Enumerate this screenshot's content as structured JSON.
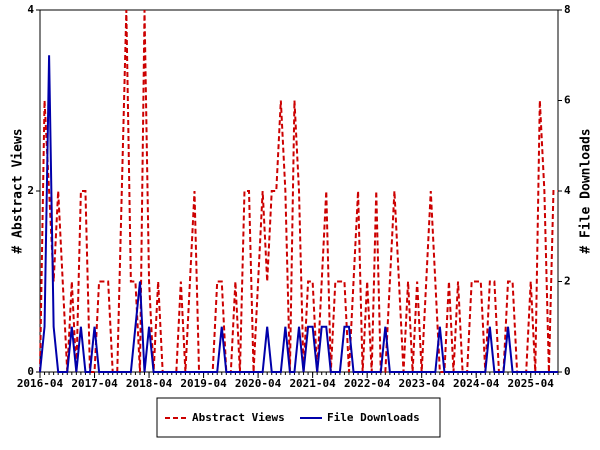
{
  "chart_data": {
    "type": "line",
    "x": [
      "2016-04",
      "2016-05",
      "2016-06",
      "2016-07",
      "2016-08",
      "2016-09",
      "2016-10",
      "2016-11",
      "2016-12",
      "2017-01",
      "2017-02",
      "2017-03",
      "2017-04",
      "2017-05",
      "2017-06",
      "2017-07",
      "2017-08",
      "2017-09",
      "2017-10",
      "2017-11",
      "2017-12",
      "2018-01",
      "2018-02",
      "2018-03",
      "2018-04",
      "2018-05",
      "2018-06",
      "2018-07",
      "2018-08",
      "2018-09",
      "2018-10",
      "2018-11",
      "2018-12",
      "2019-01",
      "2019-02",
      "2019-03",
      "2019-04",
      "2019-05",
      "2019-06",
      "2019-07",
      "2019-08",
      "2019-09",
      "2019-10",
      "2019-11",
      "2019-12",
      "2020-01",
      "2020-02",
      "2020-03",
      "2020-04",
      "2020-05",
      "2020-06",
      "2020-07",
      "2020-08",
      "2020-09",
      "2020-10",
      "2020-11",
      "2020-12",
      "2021-01",
      "2021-02",
      "2021-03",
      "2021-04",
      "2021-05",
      "2021-06",
      "2021-07",
      "2021-08",
      "2021-09",
      "2021-10",
      "2021-11",
      "2021-12",
      "2022-01",
      "2022-02",
      "2022-03",
      "2022-04",
      "2022-05",
      "2022-06",
      "2022-07",
      "2022-08",
      "2022-09",
      "2022-10",
      "2022-11",
      "2022-12",
      "2023-01",
      "2023-02",
      "2023-03",
      "2023-04",
      "2023-05",
      "2023-06",
      "2023-07",
      "2023-08",
      "2023-09",
      "2023-10",
      "2023-11",
      "2023-12",
      "2024-01",
      "2024-02",
      "2024-03",
      "2024-04",
      "2024-05",
      "2024-06",
      "2024-07",
      "2024-08",
      "2024-09",
      "2024-10",
      "2024-11",
      "2024-12",
      "2025-01",
      "2025-02",
      "2025-03",
      "2025-04",
      "2025-05",
      "2025-06",
      "2025-07",
      "2025-08",
      "2025-09",
      "2025-10"
    ],
    "xticks": [
      "2016-04",
      "2017-04",
      "2018-04",
      "2019-04",
      "2020-04",
      "2021-04",
      "2022-04",
      "2023-04",
      "2024-04",
      "2025-04"
    ],
    "ylabel": "# Abstract Views",
    "y2label": "# File Downloads",
    "ylim": [
      0,
      4
    ],
    "yticks": [
      0,
      2,
      4
    ],
    "y2lim": [
      0,
      8
    ],
    "y2ticks": [
      0,
      2,
      4,
      6,
      8
    ],
    "series": [
      {
        "name": "Abstract Views",
        "color": "#cc0000",
        "dashed": true,
        "axis": "y",
        "values": [
          0,
          3,
          2,
          1,
          2,
          1,
          0,
          1,
          0,
          2,
          2,
          0,
          0,
          1,
          1,
          1,
          0,
          0,
          2,
          4,
          1,
          1,
          0,
          4,
          1,
          0,
          1,
          0,
          0,
          0,
          0,
          1,
          0,
          1,
          2,
          0,
          0,
          0,
          0,
          1,
          1,
          0,
          0,
          1,
          0,
          2,
          2,
          0,
          1,
          2,
          1,
          2,
          2,
          3,
          2,
          0,
          3,
          2,
          0,
          1,
          1,
          0,
          1,
          2,
          0,
          1,
          1,
          1,
          0,
          1,
          2,
          0,
          1,
          0,
          2,
          0,
          0,
          1,
          2,
          1,
          0,
          1,
          0,
          1,
          0,
          1,
          2,
          1,
          0,
          0,
          1,
          0,
          1,
          0,
          0,
          1,
          1,
          1,
          0,
          1,
          1,
          0,
          0,
          1,
          1,
          0,
          0,
          0,
          1,
          0,
          3,
          2,
          0,
          2,
          2
        ]
      },
      {
        "name": "File Downloads",
        "color": "#0000aa",
        "dashed": false,
        "axis": "y2",
        "values": [
          0,
          1,
          7,
          1,
          0,
          0,
          0,
          1,
          0,
          1,
          0,
          0,
          1,
          0,
          0,
          0,
          0,
          0,
          0,
          0,
          0,
          1,
          2,
          0,
          1,
          0,
          0,
          0,
          0,
          0,
          0,
          0,
          0,
          0,
          0,
          0,
          0,
          0,
          0,
          0,
          1,
          0,
          0,
          0,
          0,
          0,
          0,
          0,
          0,
          0,
          1,
          0,
          0,
          0,
          1,
          0,
          0,
          1,
          0,
          1,
          1,
          0,
          1,
          1,
          0,
          0,
          0,
          1,
          1,
          0,
          0,
          0,
          0,
          0,
          0,
          0,
          1,
          0,
          0,
          0,
          0,
          0,
          0,
          0,
          0,
          0,
          0,
          0,
          1,
          0,
          0,
          0,
          0,
          0,
          0,
          0,
          0,
          0,
          0,
          1,
          0,
          0,
          0,
          1,
          0,
          0,
          0,
          0,
          0,
          0,
          0,
          0,
          0,
          0,
          0
        ]
      }
    ],
    "legend": "bottom"
  }
}
